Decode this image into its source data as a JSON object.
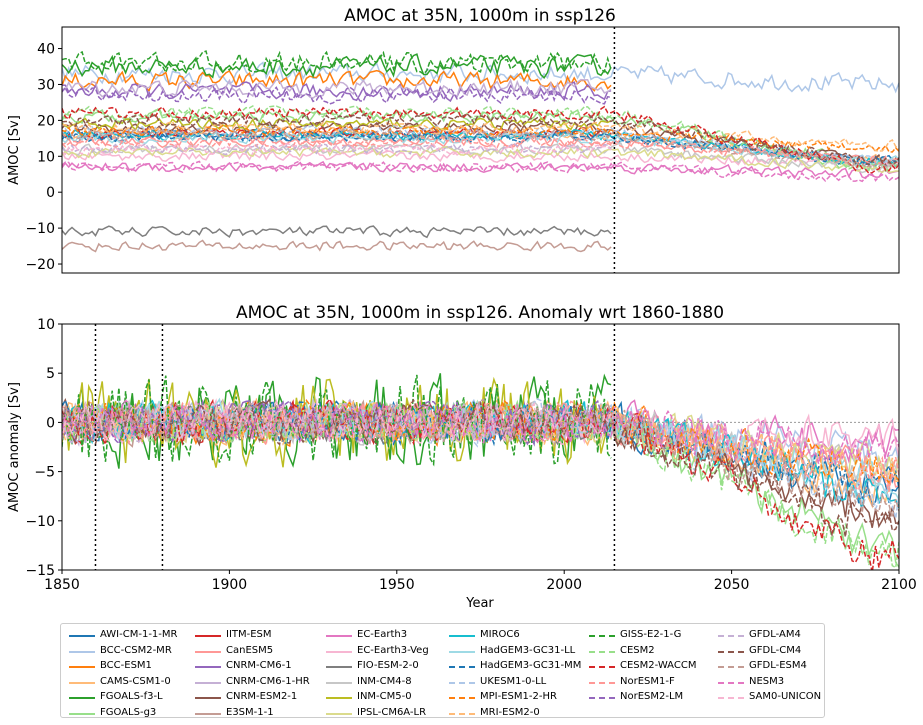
{
  "chart_data": [
    {
      "type": "line",
      "title": "AMOC at 35N, 1000m in ssp126",
      "xlabel": "",
      "ylabel": "AMOC [Sv]",
      "xlim": [
        1850,
        2100
      ],
      "ylim": [
        -22.5,
        46
      ],
      "y_ticks": [
        "−20",
        "−10",
        "0",
        "10",
        "20",
        "30",
        "40"
      ],
      "y_tick_values": [
        -20,
        -10,
        0,
        10,
        20,
        30,
        40
      ],
      "x_ticks_shown": false,
      "vlines": [
        2015
      ],
      "grid": false,
      "series_levels": [
        {
          "model": "AWI-CM-1-1-MR",
          "hist_mean": 15.5,
          "end_2100": 8.5
        },
        {
          "model": "BCC-CSM2-MR",
          "hist_mean": 33,
          "end_2100": 30
        },
        {
          "model": "BCC-ESM1",
          "hist_mean": 31,
          "end_2100": null
        },
        {
          "model": "CAMS-CSM1-0",
          "hist_mean": 16,
          "end_2100": 9
        },
        {
          "model": "FGOALS-f3-L",
          "hist_mean": 35,
          "end_2100": null
        },
        {
          "model": "FGOALS-g3",
          "hist_mean": 21,
          "end_2100": 8
        },
        {
          "model": "IITM-ESM",
          "hist_mean": 16.5,
          "end_2100": null
        },
        {
          "model": "CanESM5",
          "hist_mean": 14,
          "end_2100": 9
        },
        {
          "model": "CNRM-CM6-1",
          "hist_mean": 28,
          "end_2100": null
        },
        {
          "model": "CNRM-CM6-1-HR",
          "hist_mean": 29,
          "end_2100": null
        },
        {
          "model": "CNRM-ESM2-1",
          "hist_mean": 18,
          "end_2100": 9
        },
        {
          "model": "E3SM-1-1",
          "hist_mean": -15,
          "end_2100": null
        },
        {
          "model": "EC-Earth3",
          "hist_mean": 7,
          "end_2100": 5
        },
        {
          "model": "EC-Earth3-Veg",
          "hist_mean": 10,
          "end_2100": 8
        },
        {
          "model": "FIO-ESM-2-0",
          "hist_mean": -11,
          "end_2100": null
        },
        {
          "model": "INM-CM4-8",
          "hist_mean": 12,
          "end_2100": 7
        },
        {
          "model": "INM-CM5-0",
          "hist_mean": 19,
          "end_2100": null
        },
        {
          "model": "IPSL-CM6A-LR",
          "hist_mean": 11,
          "end_2100": 7
        },
        {
          "model": "MIROC6",
          "hist_mean": 16,
          "end_2100": 8.5
        },
        {
          "model": "HadGEM3-GC31-LL",
          "hist_mean": 15,
          "end_2100": 9
        },
        {
          "model": "HadGEM3-GC31-MM",
          "hist_mean": 15.5,
          "end_2100": 9
        },
        {
          "model": "UKESM1-0-LL",
          "hist_mean": 17,
          "end_2100": 9
        },
        {
          "model": "MPI-ESM1-2-HR",
          "hist_mean": 17,
          "end_2100": 12
        },
        {
          "model": "MRI-ESM2-0",
          "hist_mean": 18,
          "end_2100": 13
        },
        {
          "model": "GISS-E2-1-G",
          "hist_mean": 36,
          "end_2100": null
        },
        {
          "model": "CESM2",
          "hist_mean": 22,
          "end_2100": 7
        },
        {
          "model": "CESM2-WACCM",
          "hist_mean": 22,
          "end_2100": 7
        },
        {
          "model": "NorESM1-F",
          "hist_mean": 14,
          "end_2100": 9
        },
        {
          "model": "NorESM2-LM",
          "hist_mean": 27,
          "end_2100": null
        },
        {
          "model": "GFDL-AM4",
          "hist_mean": 12,
          "end_2100": null
        },
        {
          "model": "GFDL-CM4",
          "hist_mean": 20,
          "end_2100": 9
        },
        {
          "model": "GFDL-ESM4",
          "hist_mean": 16,
          "end_2100": 8
        },
        {
          "model": "NESM3",
          "hist_mean": 7,
          "end_2100": 4
        },
        {
          "model": "SAM0-UNICON",
          "hist_mean": 12,
          "end_2100": null
        }
      ]
    },
    {
      "type": "line",
      "title": "AMOC at 35N, 1000m in ssp126. Anomaly wrt 1860-1880",
      "xlabel": "Year",
      "ylabel": "AMOC anomaly [Sv]",
      "xlim": [
        1850,
        2100
      ],
      "ylim": [
        -15,
        10
      ],
      "x_ticks": [
        "1850",
        "1900",
        "1950",
        "2000",
        "2050",
        "2100"
      ],
      "x_tick_values": [
        1850,
        1900,
        1950,
        2000,
        2050,
        2100
      ],
      "y_ticks": [
        "−15",
        "−10",
        "−5",
        "0",
        "5",
        "10"
      ],
      "y_tick_values": [
        -15,
        -10,
        -5,
        0,
        5,
        10
      ],
      "vlines": [
        1860,
        1880,
        2015
      ],
      "hline": 0,
      "grid": false,
      "anomaly_range_2100": [
        -13.5,
        1
      ]
    }
  ],
  "legend": {
    "columns": [
      [
        {
          "label": "AWI-CM-1-1-MR",
          "color": "#1f77b4",
          "dashed": false
        },
        {
          "label": "BCC-CSM2-MR",
          "color": "#aec7e8",
          "dashed": false
        },
        {
          "label": "BCC-ESM1",
          "color": "#ff7f0e",
          "dashed": false
        },
        {
          "label": "CAMS-CSM1-0",
          "color": "#ffbb78",
          "dashed": false
        },
        {
          "label": "FGOALS-f3-L",
          "color": "#2ca02c",
          "dashed": false
        },
        {
          "label": "FGOALS-g3",
          "color": "#98df8a",
          "dashed": false
        }
      ],
      [
        {
          "label": "IITM-ESM",
          "color": "#d62728",
          "dashed": false
        },
        {
          "label": "CanESM5",
          "color": "#ff9896",
          "dashed": false
        },
        {
          "label": "CNRM-CM6-1",
          "color": "#9467bd",
          "dashed": false
        },
        {
          "label": "CNRM-CM6-1-HR",
          "color": "#c5b0d5",
          "dashed": false
        },
        {
          "label": "CNRM-ESM2-1",
          "color": "#8c564b",
          "dashed": false
        },
        {
          "label": "E3SM-1-1",
          "color": "#c49c94",
          "dashed": false
        }
      ],
      [
        {
          "label": "EC-Earth3",
          "color": "#e377c2",
          "dashed": false
        },
        {
          "label": "EC-Earth3-Veg",
          "color": "#f7b6d2",
          "dashed": false
        },
        {
          "label": "FIO-ESM-2-0",
          "color": "#7f7f7f",
          "dashed": false
        },
        {
          "label": "INM-CM4-8",
          "color": "#c7c7c7",
          "dashed": false
        },
        {
          "label": "INM-CM5-0",
          "color": "#bcbd22",
          "dashed": false
        },
        {
          "label": "IPSL-CM6A-LR",
          "color": "#dbdb8d",
          "dashed": false
        }
      ],
      [
        {
          "label": "MIROC6",
          "color": "#17becf",
          "dashed": false
        },
        {
          "label": "HadGEM3-GC31-LL",
          "color": "#9edae5",
          "dashed": false
        },
        {
          "label": "HadGEM3-GC31-MM",
          "color": "#1f77b4",
          "dashed": true
        },
        {
          "label": "UKESM1-0-LL",
          "color": "#aec7e8",
          "dashed": true
        },
        {
          "label": "MPI-ESM1-2-HR",
          "color": "#ff7f0e",
          "dashed": true
        },
        {
          "label": "MRI-ESM2-0",
          "color": "#ffbb78",
          "dashed": true
        }
      ],
      [
        {
          "label": "GISS-E2-1-G",
          "color": "#2ca02c",
          "dashed": true
        },
        {
          "label": "CESM2",
          "color": "#98df8a",
          "dashed": true
        },
        {
          "label": "CESM2-WACCM",
          "color": "#d62728",
          "dashed": true
        },
        {
          "label": "NorESM1-F",
          "color": "#ff9896",
          "dashed": true
        },
        {
          "label": "NorESM2-LM",
          "color": "#9467bd",
          "dashed": true
        }
      ],
      [
        {
          "label": "GFDL-AM4",
          "color": "#c5b0d5",
          "dashed": true
        },
        {
          "label": "GFDL-CM4",
          "color": "#8c564b",
          "dashed": true
        },
        {
          "label": "GFDL-ESM4",
          "color": "#c49c94",
          "dashed": true
        },
        {
          "label": "NESM3",
          "color": "#e377c2",
          "dashed": true
        },
        {
          "label": "SAM0-UNICON",
          "color": "#f7b6d2",
          "dashed": true
        }
      ]
    ]
  }
}
